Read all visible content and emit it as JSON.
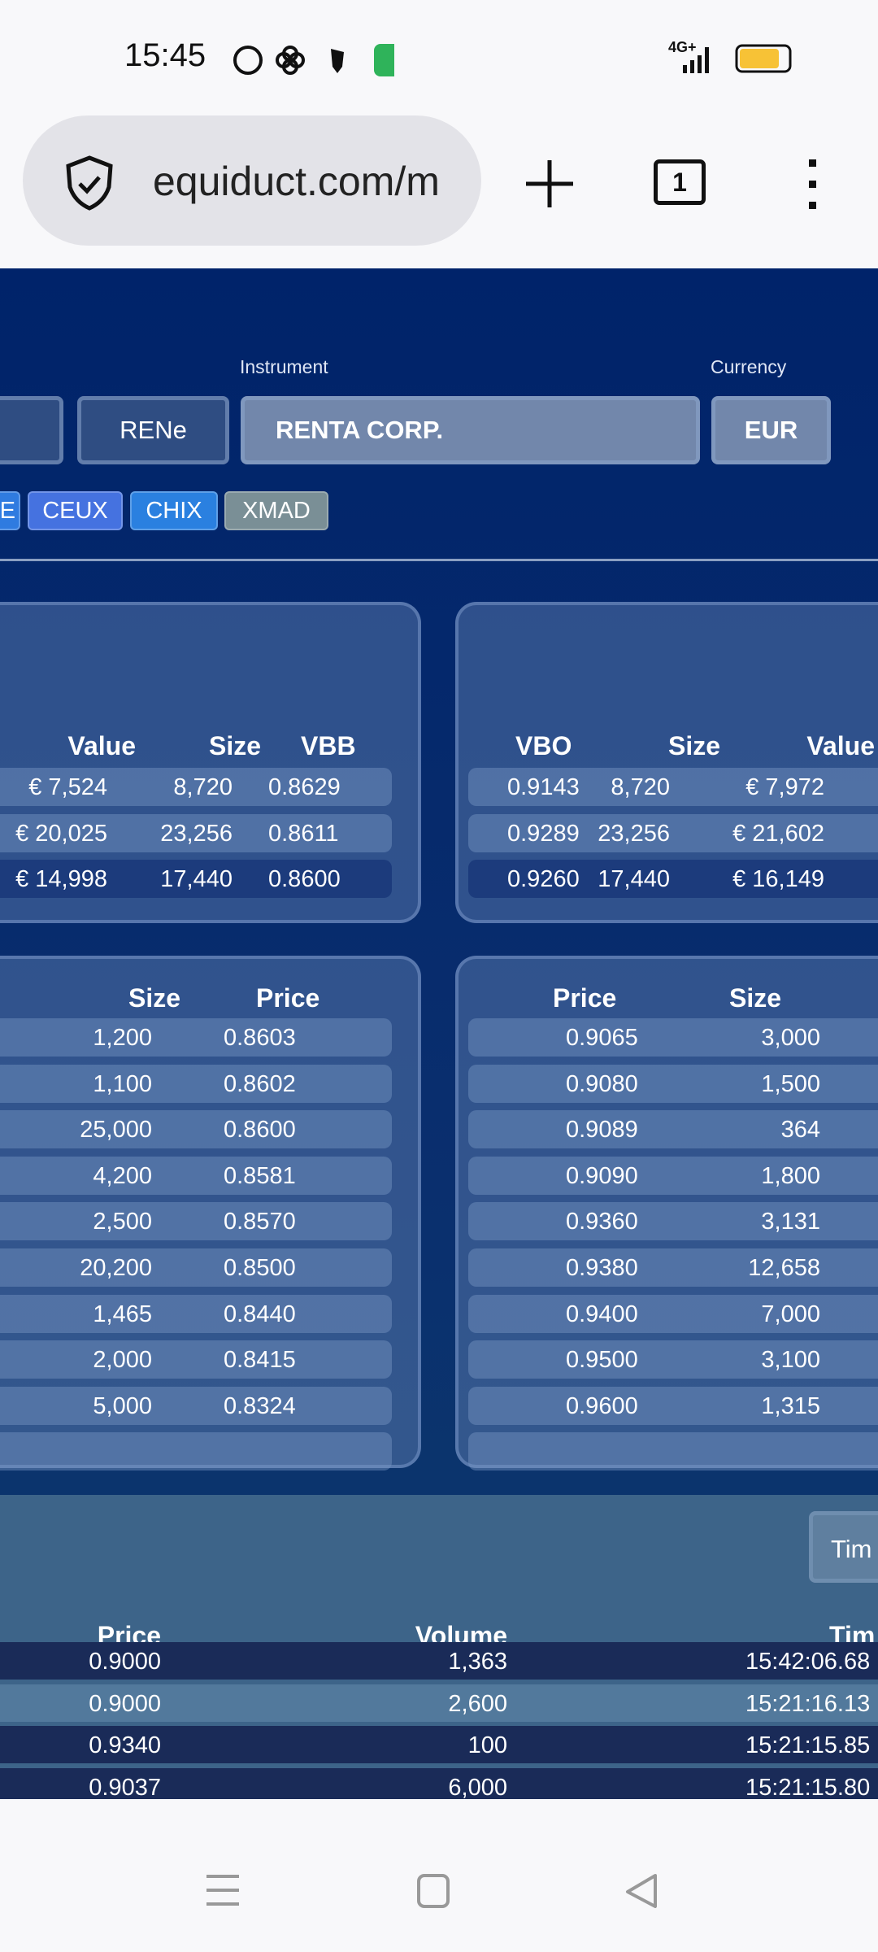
{
  "status_bar": {
    "time": "15:45",
    "network": "4G+",
    "icons": [
      "whatsapp-icon",
      "fan-icon",
      "shield-icon",
      "battery-saver-icon"
    ]
  },
  "browser": {
    "url": "equiduct.com/m",
    "tab_count": "1"
  },
  "form": {
    "instrument_label": "Instrument",
    "currency_label": "Currency",
    "isin_value": "",
    "ticker_value": "RENe",
    "instrument_value": "RENTA CORP.",
    "currency_value": "EUR"
  },
  "venues": [
    {
      "label": "E",
      "color": "#2f7be0"
    },
    {
      "label": "CEUX",
      "color": "#4572e0"
    },
    {
      "label": "CHIX",
      "color": "#2a80e0"
    },
    {
      "label": "XMAD",
      "color": "#7a8f96"
    }
  ],
  "vbb": {
    "headers": [
      "Value",
      "Size",
      "VBB"
    ],
    "rows": [
      [
        "€ 7,524",
        "8,720",
        "0.8629"
      ],
      [
        "€ 20,025",
        "23,256",
        "0.8611"
      ],
      [
        "€ 14,998",
        "17,440",
        "0.8600"
      ]
    ]
  },
  "vbo": {
    "headers": [
      "VBO",
      "Size",
      "Value"
    ],
    "rows": [
      [
        "0.9143",
        "8,720",
        "€ 7,972"
      ],
      [
        "0.9289",
        "23,256",
        "€ 21,602"
      ],
      [
        "0.9260",
        "17,440",
        "€ 16,149"
      ]
    ]
  },
  "bids": {
    "headers": [
      "Size",
      "Price"
    ],
    "rows": [
      [
        "1,200",
        "0.8603"
      ],
      [
        "1,100",
        "0.8602"
      ],
      [
        "25,000",
        "0.8600"
      ],
      [
        "4,200",
        "0.8581"
      ],
      [
        "2,500",
        "0.8570"
      ],
      [
        "20,200",
        "0.8500"
      ],
      [
        "1,465",
        "0.8440"
      ],
      [
        "2,000",
        "0.8415"
      ],
      [
        "5,000",
        "0.8324"
      ]
    ]
  },
  "asks": {
    "headers": [
      "Price",
      "Size"
    ],
    "rows": [
      [
        "0.9065",
        "3,000"
      ],
      [
        "0.9080",
        "1,500"
      ],
      [
        "0.9089",
        "364"
      ],
      [
        "0.9090",
        "1,800"
      ],
      [
        "0.9360",
        "3,131"
      ],
      [
        "0.9380",
        "12,658"
      ],
      [
        "0.9400",
        "7,000"
      ],
      [
        "0.9500",
        "3,100"
      ],
      [
        "0.9600",
        "1,315"
      ]
    ]
  },
  "trades": {
    "button_label": "Tim",
    "headers": [
      "Price",
      "Volume",
      "Tim"
    ],
    "rows": [
      [
        "0.9000",
        "1,363",
        "15:42:06.68"
      ],
      [
        "0.9000",
        "2,600",
        "15:21:16.13"
      ],
      [
        "0.9340",
        "100",
        "15:21:15.85"
      ],
      [
        "0.9037",
        "6,000",
        "15:21:15.80"
      ]
    ]
  }
}
